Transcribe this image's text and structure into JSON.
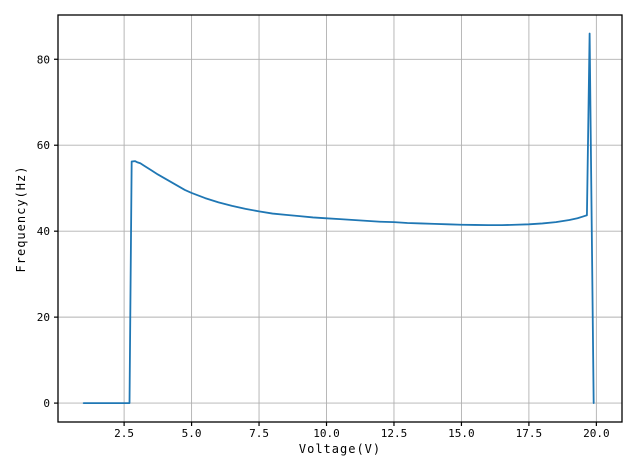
{
  "chart_data": {
    "type": "line",
    "title": "",
    "xlabel": "Voltage(V)",
    "ylabel": "Frequency(Hz)",
    "xlim": [
      0.05,
      20.95
    ],
    "ylim": [
      -4.4,
      90.3
    ],
    "xticks": [
      2.5,
      5.0,
      7.5,
      10.0,
      12.5,
      15.0,
      17.5,
      20.0
    ],
    "xtick_labels": [
      "2.5",
      "5.0",
      "7.5",
      "10.0",
      "12.5",
      "15.0",
      "17.5",
      "20.0"
    ],
    "yticks": [
      0,
      20,
      40,
      60,
      80
    ],
    "ytick_labels": [
      "0",
      "20",
      "40",
      "60",
      "80"
    ],
    "grid": true,
    "legend_position": "none",
    "line_color": "#1f77b4",
    "grid_color": "#b0b0b0",
    "axis_color": "#000000",
    "series": [
      {
        "name": "frequency-vs-voltage",
        "x": [
          1.0,
          1.5,
          2.0,
          2.5,
          2.7,
          2.78,
          2.9,
          3.0,
          3.1,
          3.25,
          3.5,
          3.75,
          4.0,
          4.25,
          4.5,
          4.75,
          5.0,
          5.5,
          6.0,
          6.5,
          7.0,
          7.5,
          8.0,
          8.5,
          9.0,
          9.5,
          10.0,
          10.5,
          11.0,
          11.5,
          12.0,
          12.5,
          13.0,
          13.5,
          14.0,
          14.5,
          15.0,
          15.5,
          16.0,
          16.5,
          17.0,
          17.5,
          18.0,
          18.5,
          19.0,
          19.3,
          19.5,
          19.65,
          19.75,
          19.9
        ],
        "y": [
          0,
          0,
          0,
          0,
          0,
          56.2,
          56.3,
          56.0,
          55.8,
          55.2,
          54.2,
          53.2,
          52.3,
          51.4,
          50.5,
          49.6,
          48.9,
          47.7,
          46.7,
          45.9,
          45.2,
          44.6,
          44.1,
          43.8,
          43.5,
          43.2,
          43.0,
          42.8,
          42.6,
          42.4,
          42.2,
          42.1,
          41.9,
          41.8,
          41.7,
          41.6,
          41.5,
          41.45,
          41.4,
          41.4,
          41.5,
          41.6,
          41.8,
          42.1,
          42.6,
          43.0,
          43.4,
          43.7,
          86.0,
          0
        ]
      }
    ]
  }
}
